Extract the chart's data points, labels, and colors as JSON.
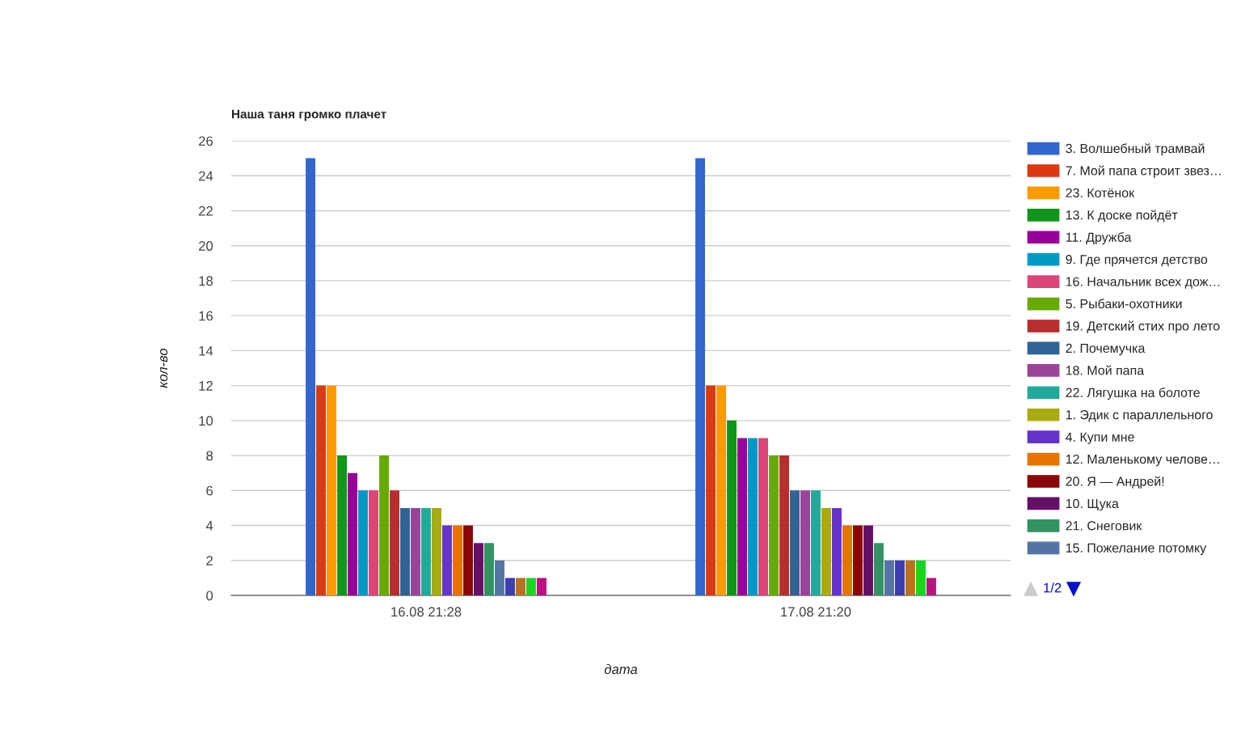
{
  "chart_data": {
    "type": "bar",
    "title": "Наша таня громко плачет",
    "xlabel": "дата",
    "ylabel": "кол-во",
    "categories": [
      "16.08 21:28",
      "17.08 21:20"
    ],
    "ylim": [
      0,
      26
    ],
    "yticks": [
      0,
      2,
      4,
      6,
      8,
      10,
      12,
      14,
      16,
      18,
      20,
      22,
      24,
      26
    ],
    "grid": "y",
    "legend": "right",
    "annotations": [
      "1/2"
    ],
    "series": [
      {
        "name": "3. Волшебный трамвай",
        "color": "#3366cc",
        "values": [
          25,
          25
        ]
      },
      {
        "name": "7. Мой папа строит звез…",
        "color": "#dc3912",
        "values": [
          12,
          12
        ]
      },
      {
        "name": "23. Котёнок",
        "color": "#ff9900",
        "values": [
          12,
          12
        ]
      },
      {
        "name": "13. К доске пойдёт",
        "color": "#109618",
        "values": [
          8,
          10
        ]
      },
      {
        "name": "11. Дружба",
        "color": "#990099",
        "values": [
          7,
          9
        ]
      },
      {
        "name": "9. Где прячется детство",
        "color": "#0099c6",
        "values": [
          6,
          9
        ]
      },
      {
        "name": "16. Начальник всех дож…",
        "color": "#dd4477",
        "values": [
          6,
          9
        ]
      },
      {
        "name": "5. Рыбаки-охотники",
        "color": "#66aa00",
        "values": [
          8,
          8
        ]
      },
      {
        "name": "19. Детский стих про лето",
        "color": "#b82e2e",
        "values": [
          6,
          8
        ]
      },
      {
        "name": "2. Почемучка",
        "color": "#316395",
        "values": [
          5,
          6
        ]
      },
      {
        "name": "18. Мой папа",
        "color": "#994499",
        "values": [
          5,
          6
        ]
      },
      {
        "name": "22. Лягушка на болоте",
        "color": "#22aa99",
        "values": [
          5,
          6
        ]
      },
      {
        "name": "1. Эдик с параллельного",
        "color": "#aaaa11",
        "values": [
          5,
          5
        ]
      },
      {
        "name": "4. Купи мне",
        "color": "#6633cc",
        "values": [
          4,
          5
        ]
      },
      {
        "name": "12. Маленькому челове…",
        "color": "#e67300",
        "values": [
          4,
          4
        ]
      },
      {
        "name": "20. Я — Андрей!",
        "color": "#8b0707",
        "values": [
          4,
          4
        ]
      },
      {
        "name": "10. Щука",
        "color": "#651067",
        "values": [
          3,
          4
        ]
      },
      {
        "name": "21. Снеговик",
        "color": "#329262",
        "values": [
          3,
          3
        ]
      },
      {
        "name": "15. Пожелание потомку",
        "color": "#5574a6",
        "values": [
          2,
          2
        ]
      },
      {
        "color": "#3b3eac",
        "values": [
          1,
          2
        ]
      },
      {
        "color": "#b77322",
        "values": [
          1,
          2
        ]
      },
      {
        "color": "#16d620",
        "values": [
          1,
          2
        ]
      },
      {
        "color": "#b91383",
        "values": [
          1,
          1
        ]
      }
    ]
  }
}
